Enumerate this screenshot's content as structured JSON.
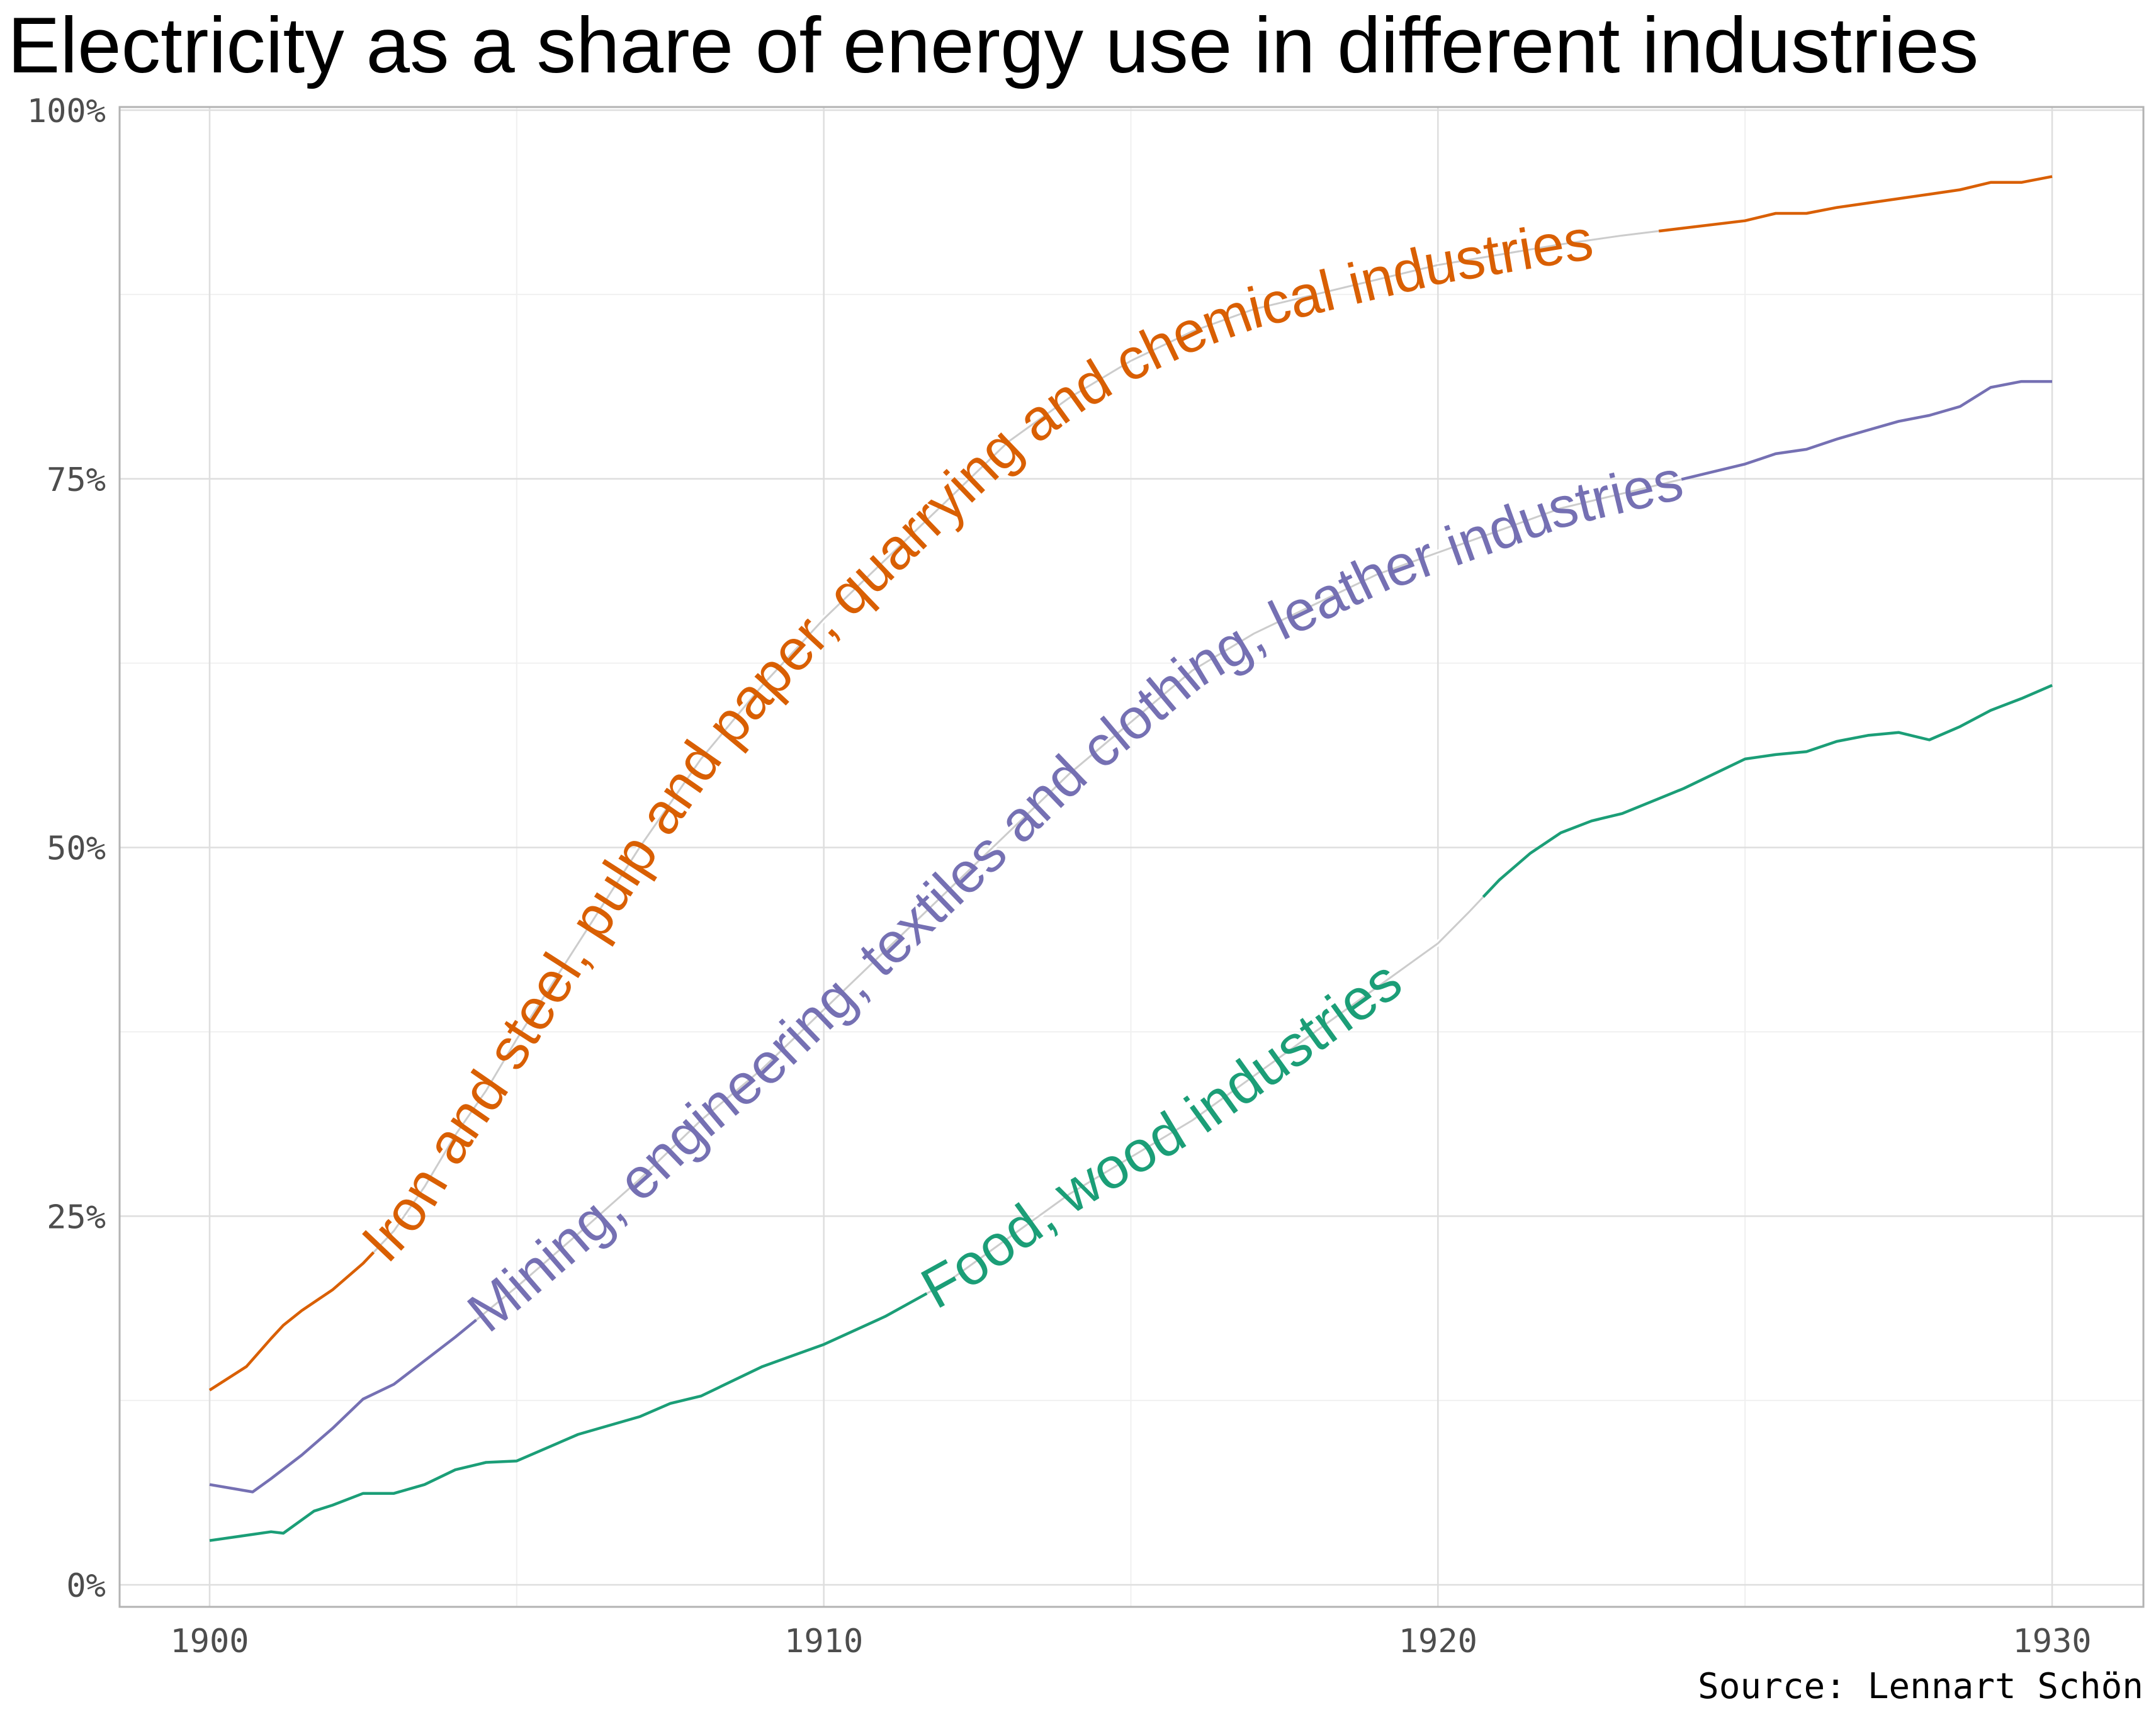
{
  "chart_data": {
    "type": "line",
    "title": "Electricity as a share of energy use in different industries",
    "caption": "Source: Lennart Schön",
    "xlabel": "",
    "ylabel": "",
    "xlim": [
      1898.5,
      1931.5
    ],
    "ylim": [
      -1.5,
      100
    ],
    "x_ticks": [
      1900,
      1910,
      1920,
      1930
    ],
    "x_tick_labels": [
      "1900",
      "1910",
      "1920",
      "1930"
    ],
    "y_ticks": [
      0,
      25,
      50,
      75,
      100
    ],
    "y_tick_labels": [
      "0%",
      "25%",
      "50%",
      "75%",
      "100%"
    ],
    "grid": true,
    "legend": "direct labels along lines",
    "series": [
      {
        "name": "Iron and steel, pulp and paper, quarrying and chemical industries",
        "color": "#d95f02",
        "x": [
          1900,
          1900.6,
          1901,
          1901.2,
          1901.5,
          1902,
          1902.5,
          1903,
          1903.5,
          1904,
          1904.5,
          1905,
          1906,
          1907,
          1908,
          1909,
          1910,
          1911,
          1912,
          1913,
          1914,
          1915,
          1916,
          1917,
          1918,
          1919,
          1920,
          1921,
          1922,
          1923,
          1924,
          1925,
          1925.5,
          1926,
          1926.5,
          1927,
          1927.5,
          1928,
          1928.5,
          1929,
          1929.5,
          1930
        ],
        "y": [
          13.2,
          14.8,
          16.7,
          17.6,
          18.6,
          20.0,
          21.8,
          24.0,
          27.0,
          30.5,
          33.5,
          37.0,
          43.5,
          50.0,
          56.0,
          61.0,
          65.5,
          69.5,
          73.5,
          77.5,
          80.5,
          83.0,
          85.0,
          86.5,
          87.5,
          88.5,
          89.5,
          90.2,
          90.9,
          91.5,
          92.0,
          92.5,
          93.0,
          93.0,
          93.4,
          93.7,
          94.0,
          94.3,
          94.6,
          95.1,
          95.1,
          95.5
        ]
      },
      {
        "name": "Mining, engineering, textiles and clothing, leather industries",
        "color": "#7570b3",
        "x": [
          1900,
          1900.7,
          1901,
          1901.5,
          1902,
          1902.5,
          1903,
          1903.5,
          1904,
          1904.5,
          1905,
          1906,
          1907,
          1908,
          1909,
          1910,
          1911,
          1912,
          1913,
          1914,
          1915,
          1916,
          1917,
          1918,
          1919,
          1920,
          1921,
          1922,
          1923,
          1924,
          1925,
          1925.5,
          1926,
          1926.5,
          1927,
          1927.5,
          1928,
          1928.5,
          1929,
          1929.5,
          1930
        ],
        "y": [
          6.8,
          6.3,
          7.2,
          8.8,
          10.6,
          12.6,
          13.6,
          15.2,
          16.8,
          18.5,
          20.2,
          23.8,
          27.5,
          31.5,
          35.0,
          39.0,
          43.0,
          47.0,
          51.0,
          55.0,
          58.5,
          62.0,
          64.5,
          66.5,
          68.5,
          70.0,
          71.5,
          73.0,
          74.0,
          75.0,
          76.0,
          76.7,
          77.0,
          77.7,
          78.3,
          78.9,
          79.3,
          79.9,
          81.2,
          81.6,
          81.6
        ]
      },
      {
        "name": "Food, wood industries",
        "color": "#1b9e77",
        "x": [
          1900,
          1901,
          1901.2,
          1901.7,
          1902,
          1902.5,
          1903,
          1903.5,
          1904,
          1904.5,
          1905,
          1906,
          1907,
          1907.5,
          1908,
          1909,
          1910,
          1911,
          1912,
          1913,
          1914,
          1915,
          1916,
          1917,
          1918,
          1919,
          1920,
          1920.5,
          1921,
          1921.5,
          1922,
          1922.5,
          1923,
          1924,
          1924.5,
          1925,
          1925.5,
          1926,
          1926.5,
          1927,
          1927.5,
          1928,
          1928.5,
          1929,
          1929.5,
          1930
        ],
        "y": [
          3.0,
          3.6,
          3.5,
          5.0,
          5.4,
          6.2,
          6.2,
          6.8,
          7.8,
          8.3,
          8.4,
          10.2,
          11.4,
          12.3,
          12.8,
          14.8,
          16.3,
          18.2,
          20.5,
          23.5,
          26.5,
          29.0,
          31.5,
          34.5,
          37.5,
          40.5,
          43.5,
          45.6,
          47.8,
          49.6,
          51.0,
          51.8,
          52.3,
          54.0,
          55.0,
          56.0,
          56.3,
          56.5,
          57.2,
          57.6,
          57.8,
          57.3,
          58.2,
          59.3,
          60.1,
          61.0
        ]
      }
    ]
  }
}
